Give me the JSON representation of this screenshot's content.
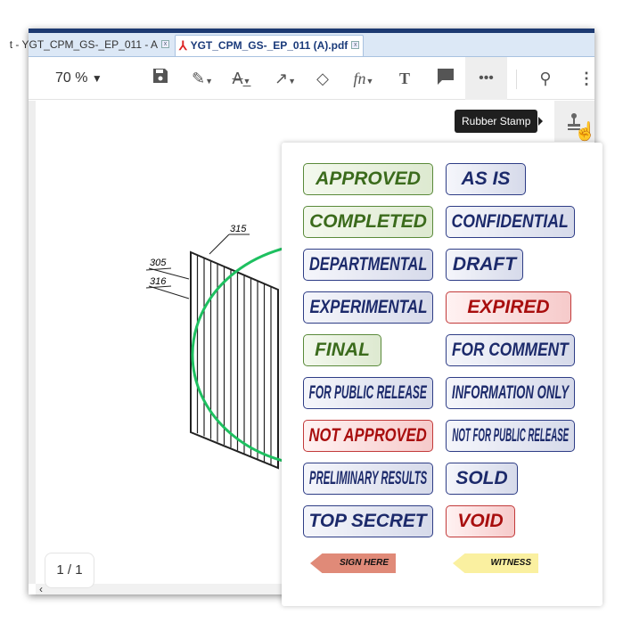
{
  "tabs": [
    {
      "label": "t - YGT_CPM_GS-_EP_011 - A",
      "active": false
    },
    {
      "label": "YGT_CPM_GS-_EP_011 (A).pdf",
      "active": true
    }
  ],
  "toolbar": {
    "zoom": "70 %",
    "icons": [
      "save-icon",
      "highlighter-icon",
      "text-strikeout-icon",
      "arrow-icon",
      "eraser-icon",
      "signature-icon",
      "text-icon",
      "comment-icon",
      "more-icon",
      "search-icon",
      "kebab-menu-icon"
    ]
  },
  "tooltip": "Rubber Stamp",
  "drawing": {
    "labels": [
      "305",
      "315",
      "316"
    ],
    "ellipse_color": "#1ec060"
  },
  "pager": "1 / 1",
  "stamps": [
    {
      "label": "APPROVED",
      "color": "green"
    },
    {
      "label": "AS IS",
      "color": "blue"
    },
    {
      "label": "COMPLETED",
      "color": "green"
    },
    {
      "label": "CONFIDENTIAL",
      "color": "blue"
    },
    {
      "label": "DEPARTMENTAL",
      "color": "blue"
    },
    {
      "label": "DRAFT",
      "color": "blue"
    },
    {
      "label": "EXPERIMENTAL",
      "color": "blue"
    },
    {
      "label": "EXPIRED",
      "color": "red"
    },
    {
      "label": "FINAL",
      "color": "green"
    },
    {
      "label": "FOR COMMENT",
      "color": "blue"
    },
    {
      "label": "FOR PUBLIC RELEASE",
      "color": "blue"
    },
    {
      "label": "INFORMATION ONLY",
      "color": "blue"
    },
    {
      "label": "NOT APPROVED",
      "color": "red"
    },
    {
      "label": "NOT FOR PUBLIC RELEASE",
      "color": "blue"
    },
    {
      "label": "PRELIMINARY RESULTS",
      "color": "blue"
    },
    {
      "label": "SOLD",
      "color": "blue"
    },
    {
      "label": "TOP SECRET",
      "color": "blue"
    },
    {
      "label": "VOID",
      "color": "red"
    }
  ],
  "arrows": [
    {
      "label": "SIGN HERE",
      "color": "#e08a78"
    },
    {
      "label": "WITNESS",
      "color": "#faf0a0"
    }
  ]
}
